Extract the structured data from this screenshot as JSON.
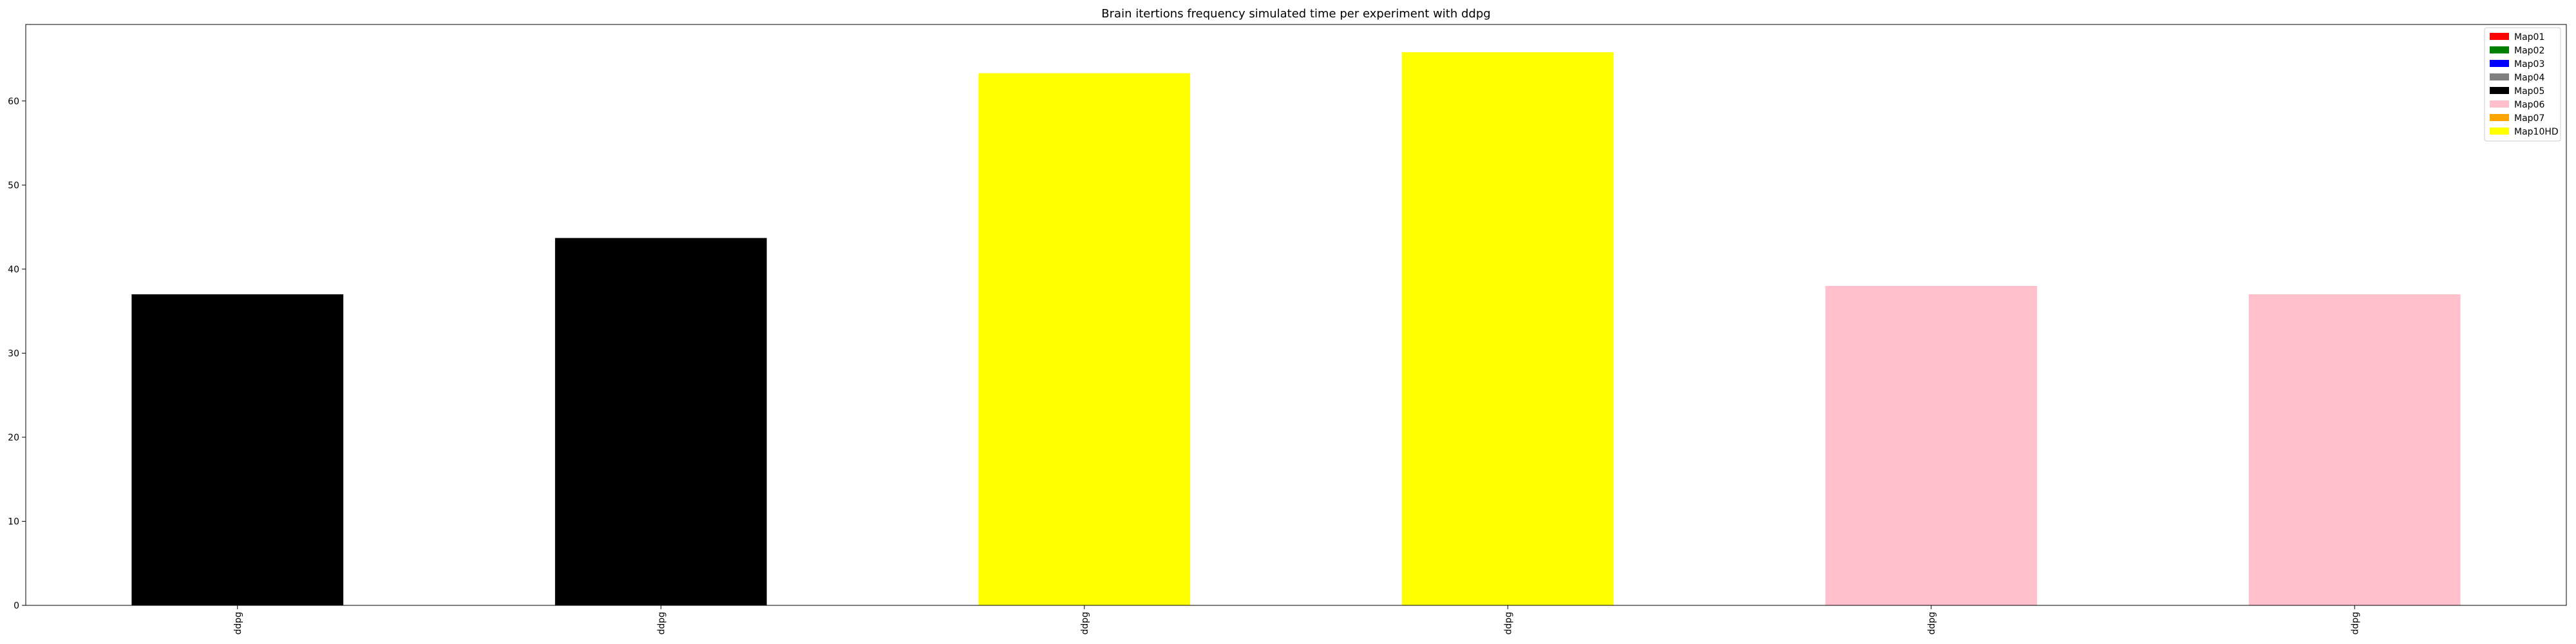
{
  "chart_data": {
    "type": "bar",
    "title": "Brain itertions frequency simulated time per experiment with ddpg",
    "xlabel": "",
    "ylabel": "",
    "categories": [
      "ddpg",
      "ddpg",
      "ddpg",
      "ddpg",
      "ddpg",
      "ddpg"
    ],
    "values": [
      37,
      43.7,
      63.3,
      65.8,
      38,
      37
    ],
    "bar_colors": [
      "#000000",
      "#000000",
      "#ffff00",
      "#ffff00",
      "#ffc0cb",
      "#ffc0cb"
    ],
    "ylim": [
      0,
      69.1
    ],
    "yticks": [
      0,
      10,
      20,
      30,
      40,
      50,
      60
    ],
    "grid": false,
    "legend_placement": "top-right",
    "legend": [
      {
        "label": "Map01",
        "color": "#ff0000"
      },
      {
        "label": "Map02",
        "color": "#008000"
      },
      {
        "label": "Map03",
        "color": "#0000ff"
      },
      {
        "label": "Map04",
        "color": "#808080"
      },
      {
        "label": "Map05",
        "color": "#000000"
      },
      {
        "label": "Map06",
        "color": "#ffc0cb"
      },
      {
        "label": "Map07",
        "color": "#ffa500"
      },
      {
        "label": "Map10HD",
        "color": "#ffff00"
      }
    ]
  }
}
